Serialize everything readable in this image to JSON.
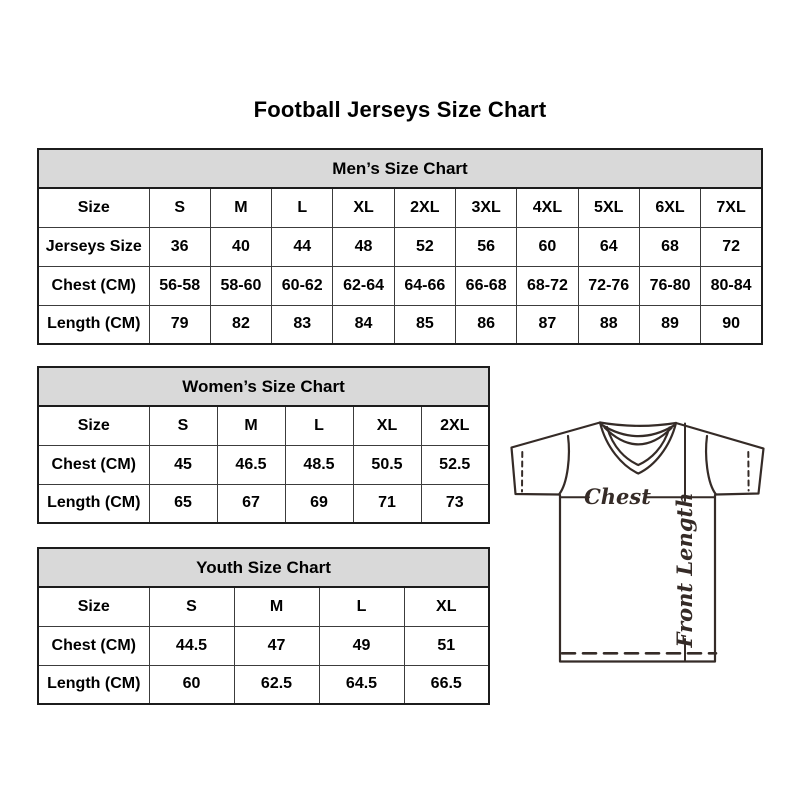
{
  "page": {
    "title": "Football Jerseys Size Chart"
  },
  "chart_data": [
    {
      "id": "mens",
      "type": "table",
      "title": "Men’s Size Chart",
      "rows": [
        [
          "Size",
          "S",
          "M",
          "L",
          "XL",
          "2XL",
          "3XL",
          "4XL",
          "5XL",
          "6XL",
          "7XL"
        ],
        [
          "Jerseys Size",
          "36",
          "40",
          "44",
          "48",
          "52",
          "56",
          "60",
          "64",
          "68",
          "72"
        ],
        [
          "Chest (CM)",
          "56-58",
          "58-60",
          "60-62",
          "62-64",
          "64-66",
          "66-68",
          "68-72",
          "72-76",
          "76-80",
          "80-84"
        ],
        [
          "Length (CM)",
          "79",
          "82",
          "83",
          "84",
          "85",
          "86",
          "87",
          "88",
          "89",
          "90"
        ]
      ]
    },
    {
      "id": "womens",
      "type": "table",
      "title": "Women’s Size Chart",
      "rows": [
        [
          "Size",
          "S",
          "M",
          "L",
          "XL",
          "2XL"
        ],
        [
          "Chest (CM)",
          "45",
          "46.5",
          "48.5",
          "50.5",
          "52.5"
        ],
        [
          "Length (CM)",
          "65",
          "67",
          "69",
          "71",
          "73"
        ]
      ]
    },
    {
      "id": "youth",
      "type": "table",
      "title": "Youth Size Chart",
      "rows": [
        [
          "Size",
          "S",
          "M",
          "L",
          "XL"
        ],
        [
          "Chest (CM)",
          "44.5",
          "47",
          "49",
          "51"
        ],
        [
          "Length (CM)",
          "60",
          "62.5",
          "64.5",
          "66.5"
        ]
      ]
    }
  ],
  "diagram": {
    "chest_label": "Chest",
    "front_length_label": "Front Length"
  },
  "colors": {
    "header_band_bg": "#d9d9d9",
    "table_outer_border": "#1c1c1c",
    "table_grid_line": "#3c3c3c",
    "text": "#000000",
    "diagram_line": "#352b27"
  }
}
